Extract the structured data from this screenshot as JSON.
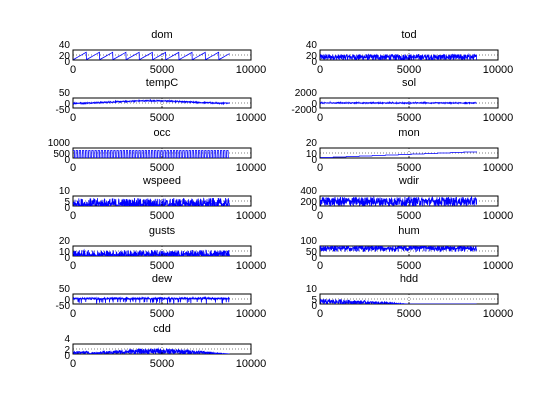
{
  "figure": {
    "background": "#ffffff",
    "axes_color": "#000000",
    "line_color": "#0000ff",
    "grid_color": "#000000"
  },
  "chart_data": [
    {
      "type": "line",
      "title": "dom",
      "xlim": [
        0,
        10000
      ],
      "xticks": [
        0,
        5000,
        10000
      ],
      "ylim": [
        0,
        40
      ],
      "yticks": [
        "40",
        "20",
        "0"
      ],
      "grid": true,
      "color": "#0000ff",
      "pattern": "sawtooth",
      "x_range": [
        0,
        8800
      ],
      "value_range": [
        1,
        31
      ]
    },
    {
      "type": "line",
      "title": "tod",
      "xlim": [
        0,
        10000
      ],
      "xticks": [
        0,
        5000,
        10000
      ],
      "ylim": [
        0,
        40
      ],
      "yticks": [
        "40",
        "20",
        "0"
      ],
      "grid": true,
      "color": "#0000ff",
      "pattern": "dense",
      "x_range": [
        0,
        8800
      ],
      "value_range": [
        0,
        23
      ]
    },
    {
      "type": "line",
      "title": "tempC",
      "xlim": [
        0,
        10000
      ],
      "xticks": [
        0,
        5000,
        10000
      ],
      "ylim": [
        -50,
        50
      ],
      "yticks": [
        "50",
        "0",
        "-50"
      ],
      "grid": true,
      "color": "#0000ff",
      "pattern": "seasonal",
      "x_range": [
        0,
        8800
      ],
      "value_range": [
        -10,
        30
      ]
    },
    {
      "type": "line",
      "title": "sol",
      "xlim": [
        0,
        10000
      ],
      "xticks": [
        0,
        5000,
        10000
      ],
      "ylim": [
        -2000,
        2000
      ],
      "yticks": [
        "2000",
        "0",
        "-2000"
      ],
      "grid": true,
      "color": "#0000ff",
      "pattern": "noise",
      "x_range": [
        0,
        8800
      ],
      "value_range": [
        -200,
        400
      ]
    },
    {
      "type": "line",
      "title": "occ",
      "xlim": [
        0,
        10000
      ],
      "xticks": [
        0,
        5000,
        10000
      ],
      "ylim": [
        0,
        1000
      ],
      "yticks": [
        "1000",
        "500",
        "0"
      ],
      "grid": true,
      "color": "#0000ff",
      "pattern": "pulses",
      "x_range": [
        0,
        8800
      ],
      "value_range": [
        0,
        1000
      ]
    },
    {
      "type": "line",
      "title": "mon",
      "xlim": [
        0,
        10000
      ],
      "xticks": [
        0,
        5000,
        10000
      ],
      "ylim": [
        0,
        20
      ],
      "yticks": [
        "20",
        "10",
        "0"
      ],
      "grid": true,
      "color": "#0000ff",
      "pattern": "steps",
      "x_range": [
        0,
        8800
      ],
      "value_range": [
        1,
        12
      ]
    },
    {
      "type": "line",
      "title": "wspeed",
      "xlim": [
        0,
        10000
      ],
      "xticks": [
        0,
        5000,
        10000
      ],
      "ylim": [
        0,
        10
      ],
      "yticks": [
        "10",
        "5",
        "0"
      ],
      "grid": true,
      "color": "#0000ff",
      "pattern": "spiky",
      "x_range": [
        0,
        8800
      ],
      "value_range": [
        0,
        8
      ]
    },
    {
      "type": "line",
      "title": "wdir",
      "xlim": [
        0,
        10000
      ],
      "xticks": [
        0,
        5000,
        10000
      ],
      "ylim": [
        0,
        400
      ],
      "yticks": [
        "400",
        "200",
        "0"
      ],
      "grid": true,
      "color": "#0000ff",
      "pattern": "dense",
      "x_range": [
        0,
        8800
      ],
      "value_range": [
        0,
        360
      ]
    },
    {
      "type": "line",
      "title": "gusts",
      "xlim": [
        0,
        10000
      ],
      "xticks": [
        0,
        5000,
        10000
      ],
      "ylim": [
        0,
        20
      ],
      "yticks": [
        "20",
        "10",
        "0"
      ],
      "grid": true,
      "color": "#0000ff",
      "pattern": "spiky",
      "x_range": [
        0,
        8800
      ],
      "value_range": [
        0,
        12
      ]
    },
    {
      "type": "line",
      "title": "hum",
      "xlim": [
        0,
        10000
      ],
      "xticks": [
        0,
        5000,
        10000
      ],
      "ylim": [
        0,
        100
      ],
      "yticks": [
        "100",
        "50",
        "0"
      ],
      "grid": true,
      "color": "#0000ff",
      "pattern": "dense-high",
      "x_range": [
        0,
        8800
      ],
      "value_range": [
        20,
        100
      ]
    },
    {
      "type": "line",
      "title": "dew",
      "xlim": [
        0,
        10000
      ],
      "xticks": [
        0,
        5000,
        10000
      ],
      "ylim": [
        -50,
        50
      ],
      "yticks": [
        "50",
        "0",
        "-50"
      ],
      "grid": true,
      "color": "#0000ff",
      "pattern": "dips",
      "x_range": [
        0,
        8800
      ],
      "value_range": [
        -45,
        25
      ]
    },
    {
      "type": "line",
      "title": "hdd",
      "xlim": [
        0,
        10000
      ],
      "xticks": [
        0,
        5000,
        10000
      ],
      "ylim": [
        0,
        10
      ],
      "yticks": [
        "10",
        "5",
        "0"
      ],
      "grid": true,
      "color": "#0000ff",
      "pattern": "decay",
      "x_range": [
        0,
        8800
      ],
      "value_range": [
        0,
        4
      ]
    },
    {
      "type": "line",
      "title": "cdd",
      "xlim": [
        0,
        10000
      ],
      "xticks": [
        0,
        5000,
        10000
      ],
      "ylim": [
        0,
        4
      ],
      "yticks": [
        "4",
        "2",
        "0"
      ],
      "grid": true,
      "color": "#0000ff",
      "pattern": "summer",
      "x_range": [
        0,
        8800
      ],
      "value_range": [
        0,
        2.2
      ]
    }
  ]
}
